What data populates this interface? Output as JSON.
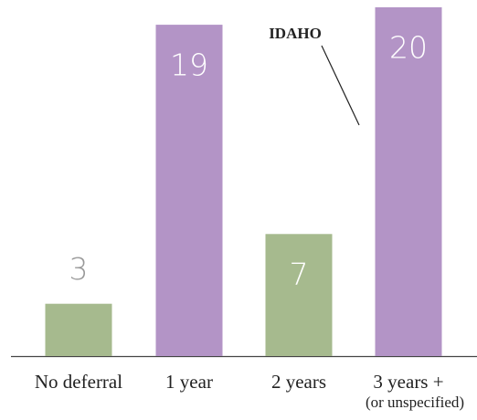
{
  "chart_data": {
    "type": "bar",
    "categories": [
      "No deferral",
      "1 year",
      "2 years",
      "3 years +"
    ],
    "category_subtitles": [
      null,
      null,
      null,
      "(or unspecified)"
    ],
    "values": [
      3,
      19,
      7,
      20
    ],
    "colors": [
      "#a6ba8e",
      "#b394c6",
      "#a6ba8e",
      "#b394c6"
    ],
    "annotation": "IDAHO"
  }
}
